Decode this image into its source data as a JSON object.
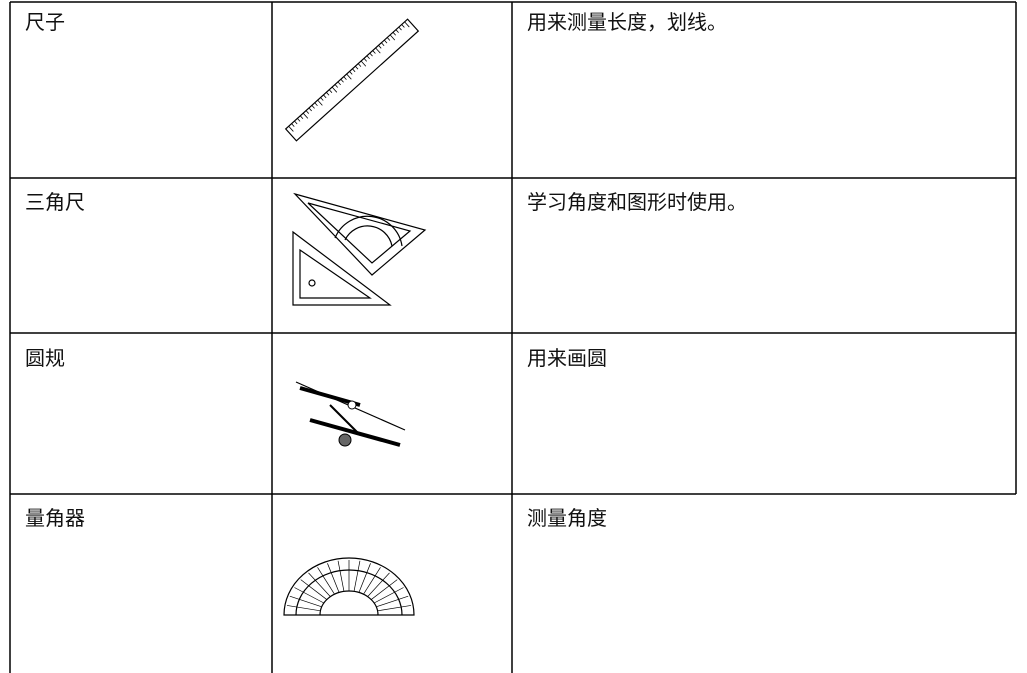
{
  "table": {
    "rows": [
      [
        "尺子",
        "用来测量长度，划线。"
      ],
      [
        "三角尺",
        "学习角度和图形时使用。"
      ],
      [
        "圆规",
        "用来画圆"
      ],
      [
        "量角器",
        "测量角度"
      ]
    ]
  }
}
